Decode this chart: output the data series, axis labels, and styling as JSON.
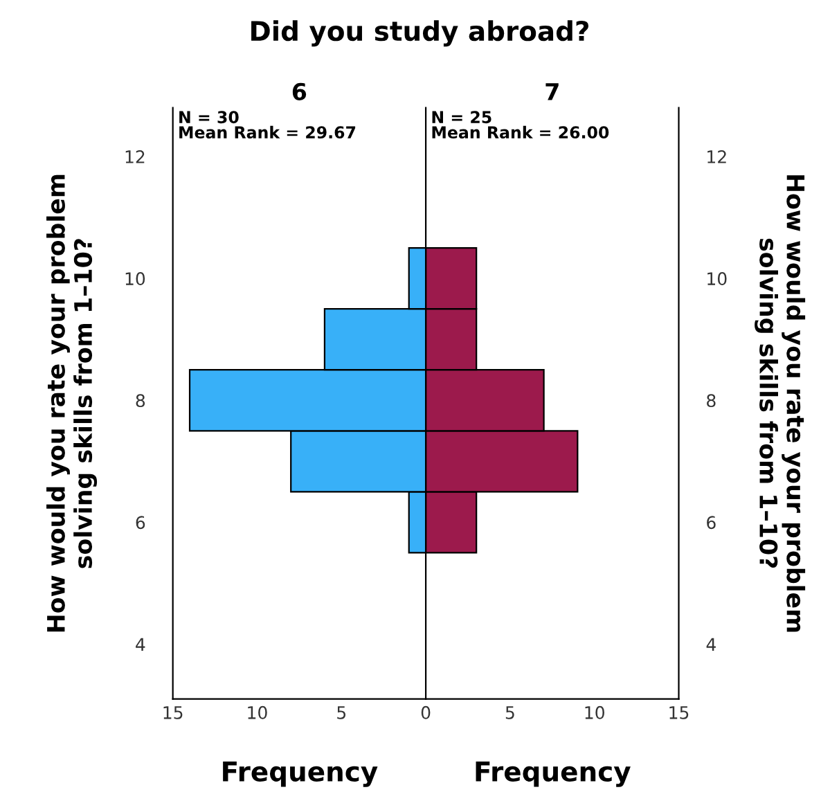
{
  "chart_data": [
    {
      "type": "histogram",
      "orientation": "horizontal",
      "title": "Did you study abroad?",
      "subtitle": "6",
      "xlabel": "Frequency",
      "ylabel": "How would you rate your problem\nsolving skills from 1–10?",
      "bins": [
        5.5,
        6.5,
        7.5,
        8.5,
        9.5,
        10.5
      ],
      "values": [
        1,
        8,
        14,
        6,
        1
      ],
      "color": "#38b0f8",
      "xlim": [
        15,
        0
      ],
      "xticks": [
        15,
        10,
        5
      ],
      "ylim": [
        3.1,
        12.8
      ],
      "yticks": [
        4,
        6,
        8,
        10,
        12
      ],
      "annotations": [
        "N = 30\nMean Rank = 29.67"
      ],
      "grid": false,
      "legend": false
    },
    {
      "type": "histogram",
      "orientation": "horizontal",
      "subtitle": "7",
      "xlabel": "Frequency",
      "ylabel": "How would you rate your problem\nsolving skills from 1–10?",
      "bins": [
        5.5,
        6.5,
        7.5,
        8.5,
        9.5,
        10.5
      ],
      "values": [
        3,
        9,
        7,
        3,
        3
      ],
      "color": "#9c1a4c",
      "xlim": [
        0,
        15
      ],
      "xticks": [
        0,
        5,
        10,
        15
      ],
      "ylim": [
        3.1,
        12.8
      ],
      "yticks": [
        4,
        6,
        8,
        10,
        12
      ],
      "annotations": [
        "N = 25\nMean Rank = 26.00"
      ],
      "grid": false,
      "legend": false
    }
  ]
}
